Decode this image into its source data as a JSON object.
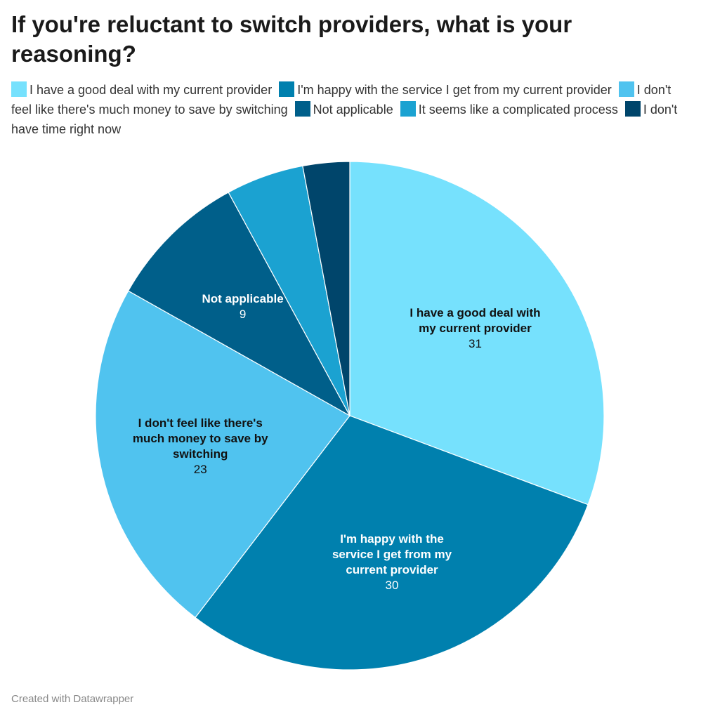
{
  "chart_data": {
    "type": "pie",
    "title": "If you're reluctant to switch providers, what is your reasoning?",
    "categories": [
      "I have a good deal with my current provider",
      "I'm happy with the service I get from my current provider",
      "I don't feel like there's much money to save by switching",
      "Not applicable",
      "It seems like a complicated process",
      "I don't have time right now"
    ],
    "values": [
      31,
      30,
      23,
      9,
      5,
      3
    ],
    "colors": [
      "#76e1fd",
      "#0080ae",
      "#50c3ef",
      "#005f8a",
      "#1ba2d1",
      "#00456b"
    ],
    "footer": "Created with Datawrapper"
  }
}
